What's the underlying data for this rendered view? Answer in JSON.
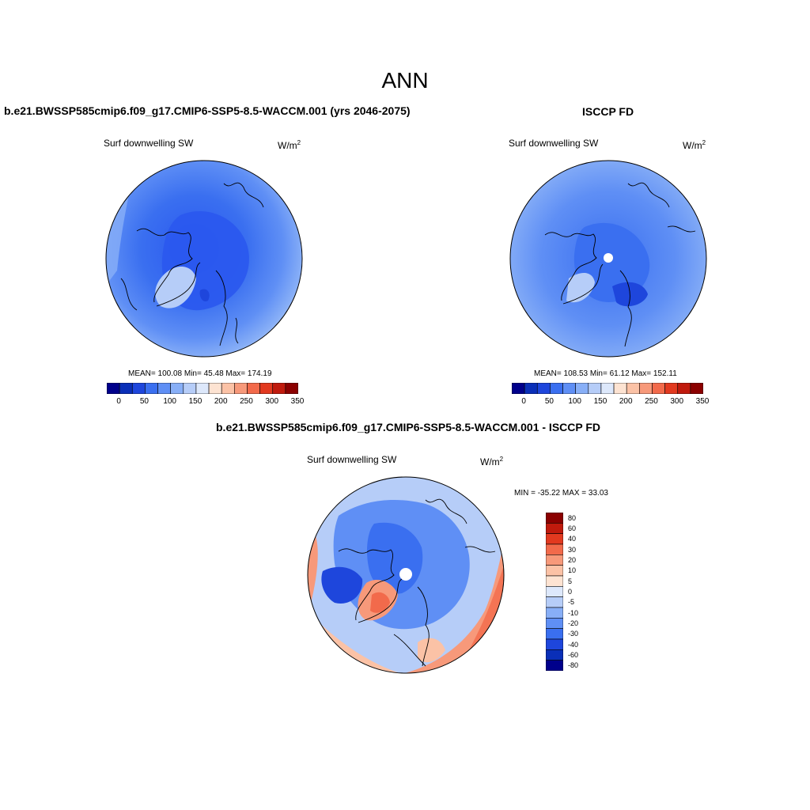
{
  "title": "ANN",
  "units": "W/m",
  "units_sup": "2",
  "panels": [
    {
      "title": "b.e21.BWSSP585cmip6.f09_g17.CMIP6-SSP5-8.5-WACCM.001 (yrs 2046-2075)",
      "variable": "Surf downwelling SW",
      "stats": "MEAN= 100.08  Min=  45.48  Max= 174.19"
    },
    {
      "title": "ISCCP FD",
      "variable": "Surf downwelling SW",
      "stats": "MEAN= 108.53  Min=  61.12  Max= 152.11"
    },
    {
      "title": "b.e21.BWSSP585cmip6.f09_g17.CMIP6-SSP5-8.5-WACCM.001 - ISCCP FD",
      "variable": "Surf downwelling SW",
      "stats": "MIN = -35.22 MAX =  33.03"
    }
  ],
  "colorbar_main": {
    "colors": [
      "#00008b",
      "#0a2fb8",
      "#1e46dc",
      "#3a6ff0",
      "#5f8ff5",
      "#88aff7",
      "#b6cdf8",
      "#dde8fb",
      "#fde3d2",
      "#fbc2a6",
      "#f7997a",
      "#f26a4b",
      "#e2391f",
      "#c01a0d",
      "#8b0000"
    ],
    "labels": [
      "0",
      "50",
      "100",
      "150",
      "200",
      "250",
      "300",
      "350"
    ]
  },
  "colorbar_diff": {
    "colors": [
      "#8b0000",
      "#c01a0d",
      "#e2391f",
      "#f26a4b",
      "#f7997a",
      "#fbc2a6",
      "#fde3d2",
      "#dde8fb",
      "#b6cdf8",
      "#88aff7",
      "#5f8ff5",
      "#3a6ff0",
      "#1e46dc",
      "#0a2fb8",
      "#00008b"
    ],
    "labels": [
      "80",
      "60",
      "40",
      "30",
      "20",
      "10",
      "5",
      "0",
      "-5",
      "-10",
      "-20",
      "-30",
      "-40",
      "-60",
      "-80"
    ]
  }
}
